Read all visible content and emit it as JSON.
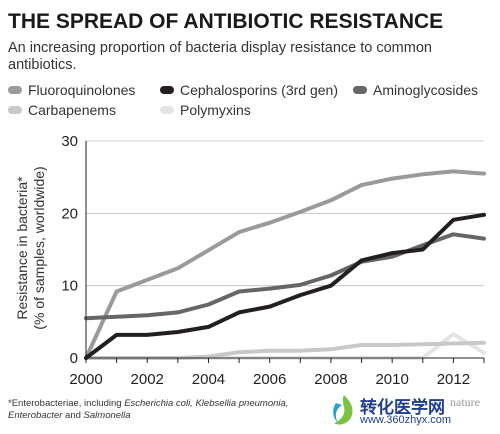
{
  "chart_data": {
    "type": "line",
    "title": "THE SPREAD OF ANTIBIOTIC RESISTANCE",
    "subtitle": "An increasing proportion of bacteria display resistance to common antibiotics.",
    "ylabel_line1": "Resistance in bacteria*",
    "ylabel_line2": "(% of samples, worldwide)",
    "xlim": [
      2000,
      2013
    ],
    "ylim": [
      0,
      30
    ],
    "xticks": [
      2000,
      2002,
      2004,
      2006,
      2008,
      2010,
      2012
    ],
    "yticks": [
      0,
      10,
      20,
      30
    ],
    "grid": "horizontal",
    "legend_position": "top",
    "series": [
      {
        "name": "Fluoroquinolones",
        "color": "#9a9a9a",
        "x": [
          2000,
          2001,
          2002,
          2003,
          2004,
          2005,
          2006,
          2007,
          2008,
          2009,
          2010,
          2011,
          2012,
          2013
        ],
        "y": [
          0,
          9.2,
          10.8,
          12.4,
          14.9,
          17.4,
          18.7,
          20.2,
          21.8,
          23.9,
          24.8,
          25.4,
          25.8,
          25.5
        ]
      },
      {
        "name": "Cephalosporins (3rd gen)",
        "color": "#231f20",
        "x": [
          2000,
          2001,
          2002,
          2003,
          2004,
          2005,
          2006,
          2007,
          2008,
          2009,
          2010,
          2011,
          2012,
          2013
        ],
        "y": [
          0,
          3.2,
          3.2,
          3.6,
          4.3,
          6.3,
          7.1,
          8.7,
          10.0,
          13.5,
          14.5,
          15.0,
          19.1,
          19.8
        ]
      },
      {
        "name": "Aminoglycosides",
        "color": "#666666",
        "x": [
          2000,
          2001,
          2002,
          2003,
          2004,
          2005,
          2006,
          2007,
          2008,
          2009,
          2010,
          2011,
          2012,
          2013
        ],
        "y": [
          5.5,
          5.7,
          5.9,
          6.3,
          7.4,
          9.2,
          9.6,
          10.1,
          11.4,
          13.3,
          14.0,
          15.6,
          17.1,
          16.5
        ]
      },
      {
        "name": "Carbapenems",
        "color": "#c8c8c8",
        "x": [
          2000,
          2001,
          2002,
          2003,
          2004,
          2005,
          2006,
          2007,
          2008,
          2009,
          2010,
          2011,
          2012,
          2013
        ],
        "y": [
          0,
          0,
          0,
          0,
          0.2,
          0.8,
          1.0,
          1.0,
          1.2,
          1.8,
          1.8,
          1.9,
          2.0,
          2.1
        ]
      },
      {
        "name": "Polymyxins",
        "color": "#e4e4e4",
        "x": [
          2000,
          2001,
          2002,
          2003,
          2004,
          2005,
          2006,
          2007,
          2008,
          2009,
          2010,
          2011,
          2012,
          2013
        ],
        "y": [
          0,
          0,
          0,
          0,
          0,
          0,
          0,
          0,
          0,
          0,
          0,
          0,
          3.3,
          0.7
        ]
      }
    ]
  },
  "footnote": {
    "part1": "*Enterobacteriae, including ",
    "part2": "Escherichia coli, Klebsellia pneumonia,",
    "part3": "Enterobacter",
    "part4": " and ",
    "part5": "Salmonella"
  },
  "watermark": {
    "chinese": "转化医学网",
    "url": "www.360zhyx.com",
    "nature": "nature"
  }
}
